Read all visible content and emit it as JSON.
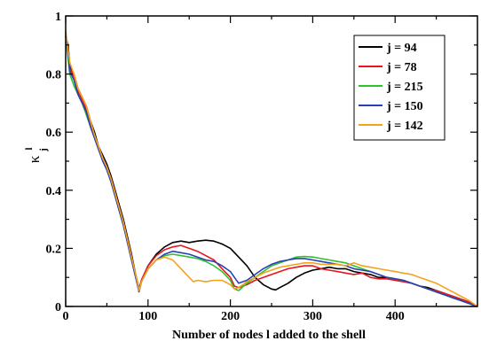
{
  "chart_data": {
    "type": "line",
    "xlabel": "Number of nodes l added to the shell",
    "ylabel": "κ",
    "ylabel_sup": "l",
    "ylabel_sub": "j",
    "xlim": [
      0,
      500
    ],
    "ylim": [
      0,
      1
    ],
    "xticks": [
      0,
      100,
      200,
      300,
      400
    ],
    "yticks": [
      0,
      0.2,
      0.4,
      0.6,
      0.8,
      1
    ],
    "ytick_labels": [
      "0",
      "0.2",
      "0.4",
      "0.6",
      "0.8",
      "1"
    ],
    "grid": false,
    "legend": "top-right",
    "series": [
      {
        "name": "j = 94",
        "color": "#000000",
        "points": [
          [
            0,
            0.93
          ],
          [
            3,
            0.9
          ],
          [
            5,
            0.83
          ],
          [
            10,
            0.8
          ],
          [
            15,
            0.75
          ],
          [
            20,
            0.72
          ],
          [
            25,
            0.69
          ],
          [
            30,
            0.64
          ],
          [
            35,
            0.6
          ],
          [
            40,
            0.55
          ],
          [
            45,
            0.52
          ],
          [
            50,
            0.49
          ],
          [
            55,
            0.45
          ],
          [
            60,
            0.4
          ],
          [
            65,
            0.35
          ],
          [
            70,
            0.3
          ],
          [
            75,
            0.24
          ],
          [
            80,
            0.18
          ],
          [
            85,
            0.11
          ],
          [
            89,
            0.06
          ],
          [
            92,
            0.09
          ],
          [
            100,
            0.14
          ],
          [
            110,
            0.18
          ],
          [
            120,
            0.205
          ],
          [
            130,
            0.22
          ],
          [
            140,
            0.225
          ],
          [
            150,
            0.22
          ],
          [
            160,
            0.225
          ],
          [
            170,
            0.228
          ],
          [
            180,
            0.225
          ],
          [
            190,
            0.215
          ],
          [
            200,
            0.2
          ],
          [
            210,
            0.17
          ],
          [
            220,
            0.14
          ],
          [
            230,
            0.1
          ],
          [
            240,
            0.075
          ],
          [
            250,
            0.06
          ],
          [
            255,
            0.057
          ],
          [
            260,
            0.065
          ],
          [
            270,
            0.08
          ],
          [
            280,
            0.1
          ],
          [
            290,
            0.115
          ],
          [
            300,
            0.125
          ],
          [
            310,
            0.13
          ],
          [
            320,
            0.135
          ],
          [
            330,
            0.13
          ],
          [
            340,
            0.13
          ],
          [
            350,
            0.12
          ],
          [
            360,
            0.115
          ],
          [
            370,
            0.11
          ],
          [
            380,
            0.1
          ],
          [
            390,
            0.1
          ],
          [
            400,
            0.095
          ],
          [
            410,
            0.09
          ],
          [
            420,
            0.08
          ],
          [
            430,
            0.07
          ],
          [
            440,
            0.065
          ],
          [
            450,
            0.055
          ],
          [
            460,
            0.045
          ],
          [
            470,
            0.035
          ],
          [
            480,
            0.025
          ],
          [
            490,
            0.015
          ],
          [
            500,
            0.0
          ]
        ]
      },
      {
        "name": "j = 78",
        "color": "#e8141e",
        "points": [
          [
            0,
            0.93
          ],
          [
            3,
            0.88
          ],
          [
            5,
            0.82
          ],
          [
            10,
            0.79
          ],
          [
            15,
            0.74
          ],
          [
            20,
            0.71
          ],
          [
            25,
            0.68
          ],
          [
            30,
            0.63
          ],
          [
            35,
            0.59
          ],
          [
            40,
            0.55
          ],
          [
            45,
            0.51
          ],
          [
            50,
            0.48
          ],
          [
            55,
            0.44
          ],
          [
            60,
            0.39
          ],
          [
            65,
            0.34
          ],
          [
            70,
            0.29
          ],
          [
            75,
            0.23
          ],
          [
            80,
            0.17
          ],
          [
            85,
            0.11
          ],
          [
            89,
            0.055
          ],
          [
            92,
            0.09
          ],
          [
            100,
            0.14
          ],
          [
            110,
            0.175
          ],
          [
            120,
            0.195
          ],
          [
            130,
            0.205
          ],
          [
            140,
            0.21
          ],
          [
            150,
            0.2
          ],
          [
            160,
            0.19
          ],
          [
            170,
            0.175
          ],
          [
            180,
            0.16
          ],
          [
            190,
            0.13
          ],
          [
            200,
            0.1
          ],
          [
            205,
            0.07
          ],
          [
            210,
            0.065
          ],
          [
            220,
            0.075
          ],
          [
            230,
            0.09
          ],
          [
            240,
            0.1
          ],
          [
            250,
            0.11
          ],
          [
            260,
            0.12
          ],
          [
            270,
            0.13
          ],
          [
            280,
            0.135
          ],
          [
            290,
            0.14
          ],
          [
            300,
            0.14
          ],
          [
            310,
            0.13
          ],
          [
            320,
            0.125
          ],
          [
            330,
            0.12
          ],
          [
            340,
            0.115
          ],
          [
            350,
            0.11
          ],
          [
            360,
            0.115
          ],
          [
            370,
            0.1
          ],
          [
            380,
            0.095
          ],
          [
            390,
            0.095
          ],
          [
            400,
            0.09
          ],
          [
            410,
            0.085
          ],
          [
            420,
            0.08
          ],
          [
            430,
            0.07
          ],
          [
            440,
            0.06
          ],
          [
            450,
            0.055
          ],
          [
            460,
            0.045
          ],
          [
            470,
            0.035
          ],
          [
            480,
            0.025
          ],
          [
            490,
            0.015
          ],
          [
            500,
            0.0
          ]
        ]
      },
      {
        "name": "j = 215",
        "color": "#2ec22e",
        "points": [
          [
            0,
            0.94
          ],
          [
            3,
            0.85
          ],
          [
            5,
            0.8
          ],
          [
            10,
            0.76
          ],
          [
            15,
            0.73
          ],
          [
            20,
            0.7
          ],
          [
            25,
            0.66
          ],
          [
            30,
            0.62
          ],
          [
            35,
            0.58
          ],
          [
            40,
            0.54
          ],
          [
            45,
            0.51
          ],
          [
            50,
            0.47
          ],
          [
            55,
            0.43
          ],
          [
            60,
            0.38
          ],
          [
            65,
            0.33
          ],
          [
            70,
            0.28
          ],
          [
            75,
            0.22
          ],
          [
            80,
            0.16
          ],
          [
            85,
            0.1
          ],
          [
            89,
            0.055
          ],
          [
            92,
            0.085
          ],
          [
            100,
            0.13
          ],
          [
            110,
            0.16
          ],
          [
            120,
            0.175
          ],
          [
            130,
            0.18
          ],
          [
            140,
            0.175
          ],
          [
            150,
            0.17
          ],
          [
            160,
            0.165
          ],
          [
            170,
            0.155
          ],
          [
            180,
            0.14
          ],
          [
            190,
            0.12
          ],
          [
            200,
            0.09
          ],
          [
            205,
            0.06
          ],
          [
            210,
            0.055
          ],
          [
            220,
            0.08
          ],
          [
            230,
            0.1
          ],
          [
            240,
            0.12
          ],
          [
            250,
            0.14
          ],
          [
            260,
            0.15
          ],
          [
            270,
            0.16
          ],
          [
            280,
            0.17
          ],
          [
            290,
            0.172
          ],
          [
            300,
            0.17
          ],
          [
            310,
            0.165
          ],
          [
            320,
            0.16
          ],
          [
            330,
            0.155
          ],
          [
            340,
            0.15
          ],
          [
            350,
            0.14
          ],
          [
            360,
            0.13
          ],
          [
            370,
            0.12
          ],
          [
            380,
            0.11
          ],
          [
            390,
            0.1
          ],
          [
            400,
            0.095
          ],
          [
            410,
            0.09
          ],
          [
            420,
            0.08
          ],
          [
            430,
            0.07
          ],
          [
            440,
            0.06
          ],
          [
            450,
            0.05
          ],
          [
            460,
            0.04
          ],
          [
            470,
            0.03
          ],
          [
            480,
            0.02
          ],
          [
            490,
            0.01
          ],
          [
            500,
            0.0
          ]
        ]
      },
      {
        "name": "j = 150",
        "color": "#2a3fb5",
        "points": [
          [
            0,
            0.93
          ],
          [
            3,
            0.87
          ],
          [
            5,
            0.81
          ],
          [
            10,
            0.78
          ],
          [
            15,
            0.73
          ],
          [
            20,
            0.7
          ],
          [
            25,
            0.67
          ],
          [
            30,
            0.62
          ],
          [
            35,
            0.58
          ],
          [
            40,
            0.54
          ],
          [
            45,
            0.5
          ],
          [
            50,
            0.47
          ],
          [
            55,
            0.43
          ],
          [
            60,
            0.38
          ],
          [
            65,
            0.33
          ],
          [
            70,
            0.28
          ],
          [
            75,
            0.22
          ],
          [
            80,
            0.16
          ],
          [
            85,
            0.1
          ],
          [
            89,
            0.05
          ],
          [
            92,
            0.085
          ],
          [
            100,
            0.13
          ],
          [
            110,
            0.16
          ],
          [
            120,
            0.18
          ],
          [
            130,
            0.19
          ],
          [
            140,
            0.185
          ],
          [
            150,
            0.18
          ],
          [
            160,
            0.17
          ],
          [
            170,
            0.16
          ],
          [
            180,
            0.155
          ],
          [
            190,
            0.14
          ],
          [
            200,
            0.12
          ],
          [
            205,
            0.1
          ],
          [
            210,
            0.08
          ],
          [
            220,
            0.09
          ],
          [
            230,
            0.11
          ],
          [
            240,
            0.13
          ],
          [
            250,
            0.145
          ],
          [
            260,
            0.155
          ],
          [
            270,
            0.16
          ],
          [
            280,
            0.165
          ],
          [
            290,
            0.165
          ],
          [
            300,
            0.16
          ],
          [
            310,
            0.155
          ],
          [
            320,
            0.15
          ],
          [
            330,
            0.145
          ],
          [
            340,
            0.14
          ],
          [
            350,
            0.13
          ],
          [
            360,
            0.125
          ],
          [
            370,
            0.12
          ],
          [
            380,
            0.11
          ],
          [
            390,
            0.1
          ],
          [
            400,
            0.095
          ],
          [
            410,
            0.09
          ],
          [
            420,
            0.08
          ],
          [
            430,
            0.07
          ],
          [
            440,
            0.06
          ],
          [
            450,
            0.05
          ],
          [
            460,
            0.04
          ],
          [
            470,
            0.03
          ],
          [
            480,
            0.02
          ],
          [
            490,
            0.01
          ],
          [
            500,
            0.0
          ]
        ]
      },
      {
        "name": "j = 142",
        "color": "#f5a21c",
        "points": [
          [
            0,
            0.95
          ],
          [
            3,
            0.88
          ],
          [
            5,
            0.84
          ],
          [
            10,
            0.8
          ],
          [
            15,
            0.75
          ],
          [
            20,
            0.72
          ],
          [
            25,
            0.69
          ],
          [
            30,
            0.64
          ],
          [
            35,
            0.59
          ],
          [
            40,
            0.55
          ],
          [
            45,
            0.51
          ],
          [
            50,
            0.48
          ],
          [
            55,
            0.44
          ],
          [
            60,
            0.39
          ],
          [
            65,
            0.34
          ],
          [
            70,
            0.29
          ],
          [
            75,
            0.23
          ],
          [
            80,
            0.17
          ],
          [
            85,
            0.11
          ],
          [
            89,
            0.055
          ],
          [
            92,
            0.085
          ],
          [
            100,
            0.13
          ],
          [
            110,
            0.16
          ],
          [
            120,
            0.17
          ],
          [
            130,
            0.16
          ],
          [
            140,
            0.13
          ],
          [
            150,
            0.1
          ],
          [
            155,
            0.085
          ],
          [
            160,
            0.09
          ],
          [
            170,
            0.085
          ],
          [
            180,
            0.09
          ],
          [
            190,
            0.09
          ],
          [
            200,
            0.075
          ],
          [
            205,
            0.06
          ],
          [
            210,
            0.065
          ],
          [
            220,
            0.085
          ],
          [
            230,
            0.1
          ],
          [
            240,
            0.115
          ],
          [
            250,
            0.125
          ],
          [
            260,
            0.135
          ],
          [
            270,
            0.14
          ],
          [
            280,
            0.145
          ],
          [
            290,
            0.15
          ],
          [
            300,
            0.15
          ],
          [
            310,
            0.145
          ],
          [
            320,
            0.145
          ],
          [
            330,
            0.145
          ],
          [
            340,
            0.14
          ],
          [
            350,
            0.15
          ],
          [
            360,
            0.14
          ],
          [
            370,
            0.135
          ],
          [
            380,
            0.13
          ],
          [
            390,
            0.125
          ],
          [
            400,
            0.12
          ],
          [
            410,
            0.115
          ],
          [
            420,
            0.11
          ],
          [
            430,
            0.1
          ],
          [
            440,
            0.09
          ],
          [
            450,
            0.08
          ],
          [
            460,
            0.065
          ],
          [
            470,
            0.05
          ],
          [
            480,
            0.035
          ],
          [
            490,
            0.02
          ],
          [
            500,
            0.0
          ]
        ]
      }
    ]
  }
}
